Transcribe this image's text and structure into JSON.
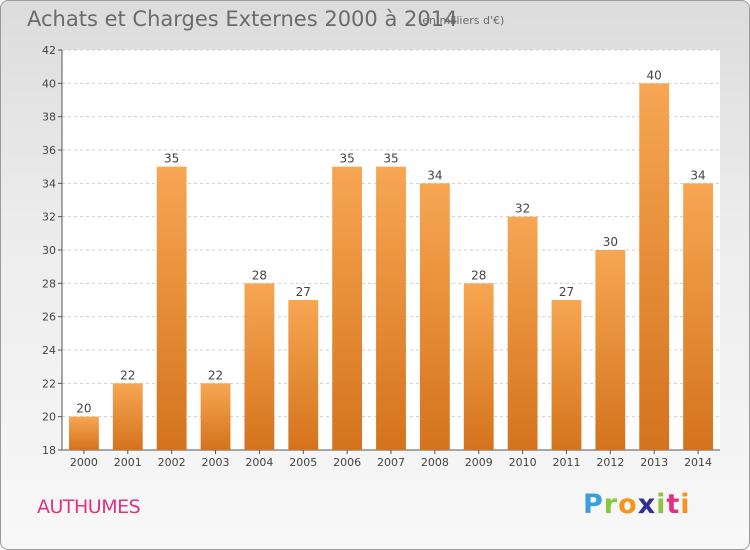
{
  "title": "Achats et Charges Externes 2000 à 2014",
  "subtitle": "(en milliers d'€)",
  "place": "AUTHUMES",
  "logo": {
    "text": "Proxiti",
    "letters": [
      "P",
      "r",
      "o",
      "x",
      "i",
      "t",
      "i"
    ],
    "colors": [
      "#3aa0dc",
      "#8cc63f",
      "#f7941d",
      "#2e3192",
      "#8cc63f",
      "#e0337f",
      "#f7941d"
    ]
  },
  "colors": {
    "bar_top": "#f7a653",
    "bar_bottom": "#d4731d",
    "grid": "#cfcfcf",
    "axis_text": "#444444"
  },
  "chart_data": {
    "type": "bar",
    "categories": [
      "2000",
      "2001",
      "2002",
      "2003",
      "2004",
      "2005",
      "2006",
      "2007",
      "2008",
      "2009",
      "2010",
      "2011",
      "2012",
      "2013",
      "2014"
    ],
    "values": [
      20,
      22,
      35,
      22,
      28,
      27,
      35,
      35,
      34,
      28,
      32,
      27,
      30,
      40,
      34
    ],
    "title": "Achats et Charges Externes 2000 à 2014",
    "xlabel": "",
    "ylabel": "",
    "ylim": [
      18,
      42
    ],
    "yticks": [
      18,
      20,
      22,
      24,
      26,
      28,
      30,
      32,
      34,
      36,
      38,
      40,
      42
    ],
    "grid": true,
    "data_labels": true
  }
}
